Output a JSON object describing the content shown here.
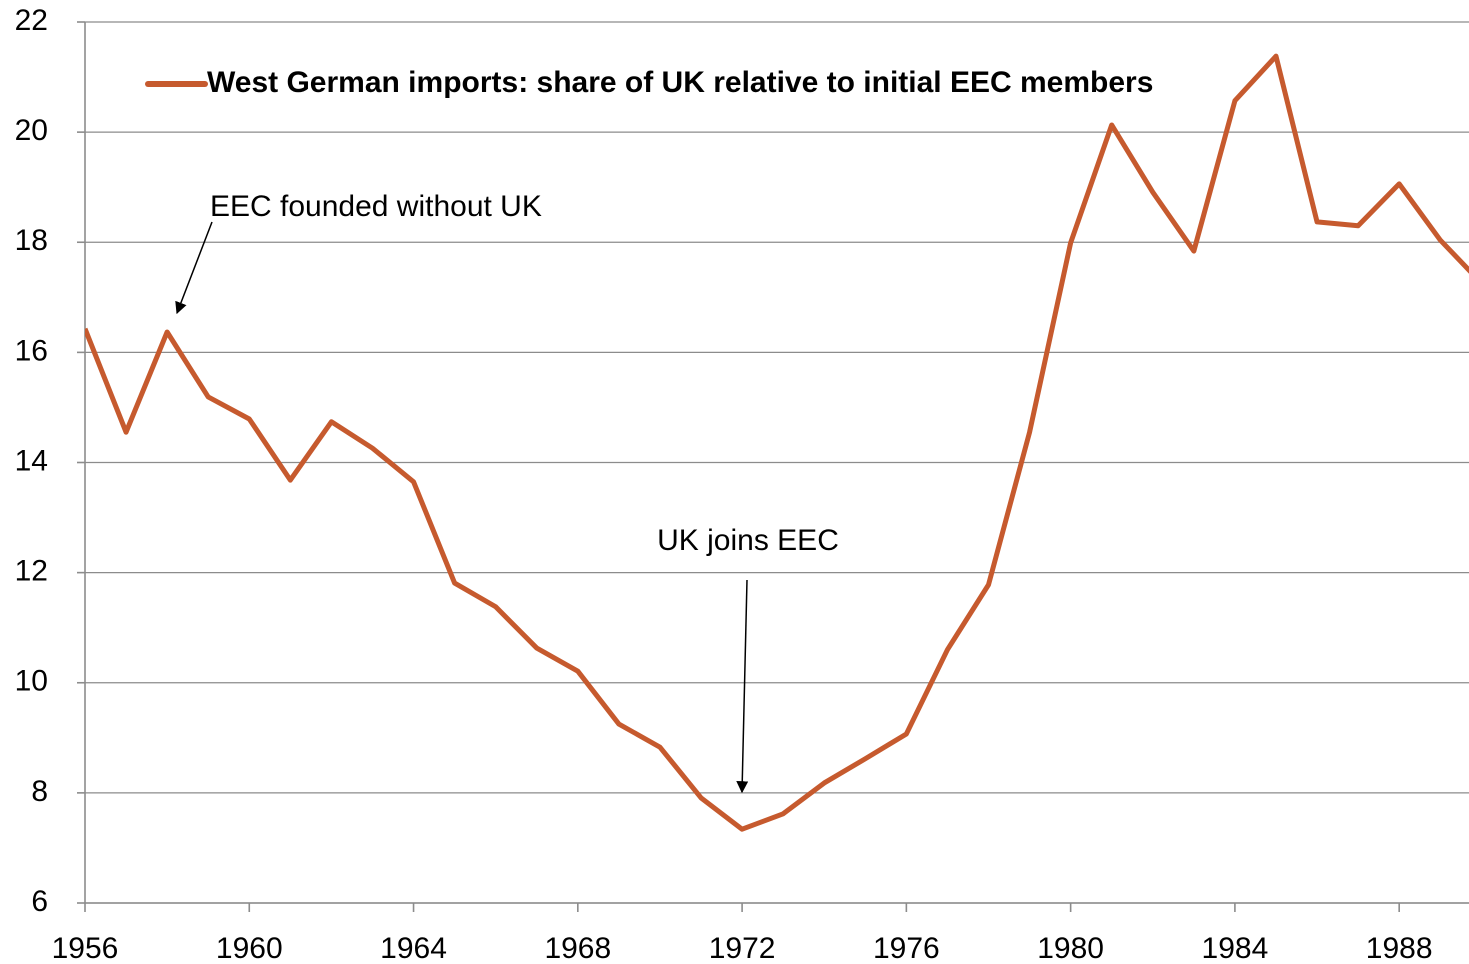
{
  "chart_data": {
    "type": "line",
    "x": [
      1956,
      1957,
      1958,
      1959,
      1960,
      1961,
      1962,
      1963,
      1964,
      1965,
      1966,
      1967,
      1968,
      1969,
      1970,
      1971,
      1972,
      1973,
      1974,
      1975,
      1976,
      1977,
      1978,
      1979,
      1980,
      1981,
      1982,
      1983,
      1984,
      1985,
      1986,
      1987,
      1988,
      1989,
      1990
    ],
    "series": [
      {
        "name": "West German imports: share of UK relative to initial EEC members",
        "color": "#c65a2e",
        "values": [
          16.43,
          14.55,
          16.37,
          15.19,
          14.79,
          13.68,
          14.74,
          14.26,
          13.65,
          11.81,
          11.38,
          10.63,
          10.21,
          9.25,
          8.83,
          7.91,
          7.34,
          7.62,
          8.18,
          8.62,
          9.07,
          10.6,
          11.78,
          14.55,
          17.99,
          20.13,
          18.91,
          17.84,
          20.57,
          21.38,
          18.37,
          18.3,
          19.06,
          18.04,
          17.26
        ]
      }
    ],
    "xlim": [
      1956,
      1989.7
    ],
    "xticks": [
      1956,
      1960,
      1964,
      1968,
      1972,
      1976,
      1980,
      1984,
      1988
    ],
    "ylim": [
      6,
      22
    ],
    "yticks": [
      6,
      8,
      10,
      12,
      14,
      16,
      18,
      20,
      22
    ],
    "grid": true,
    "legend": "upper left",
    "annotations": [
      {
        "text": "EEC founded without UK",
        "x": 1958
      },
      {
        "text": "UK joins EEC",
        "x": 1972
      }
    ]
  }
}
